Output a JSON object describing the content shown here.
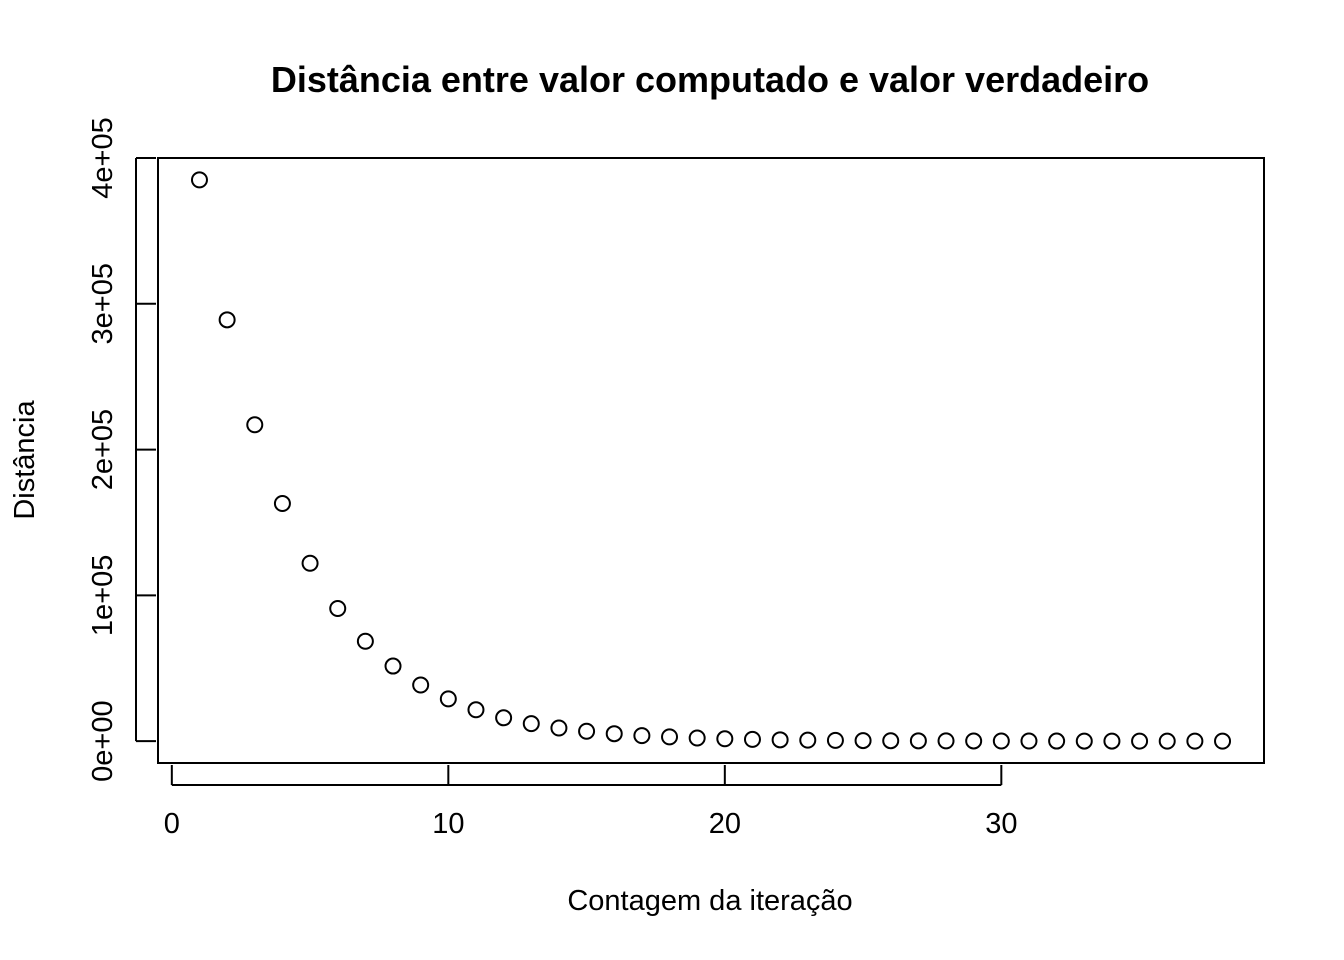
{
  "chart_data": {
    "type": "scatter",
    "title": "Distância entre valor computado e valor verdadeiro",
    "xlabel": "Contagem da iteração",
    "ylabel": "Distância",
    "xlim": [
      -0.5,
      39.5
    ],
    "ylim": [
      -15000,
      400000
    ],
    "x_ticks": [
      0,
      10,
      20,
      30
    ],
    "x_tick_labels": [
      "0",
      "10",
      "20",
      "30"
    ],
    "y_ticks": [
      0,
      100000,
      200000,
      300000,
      400000
    ],
    "y_tick_labels": [
      "0e+00",
      "1e+05",
      "2e+05",
      "3e+05",
      "4e+05"
    ],
    "grid": false,
    "legend": "none",
    "marker": "open-circle",
    "x": [
      1,
      2,
      3,
      4,
      5,
      6,
      7,
      8,
      9,
      10,
      11,
      12,
      13,
      14,
      15,
      16,
      17,
      18,
      19,
      20,
      21,
      22,
      23,
      24,
      25,
      26,
      27,
      28,
      29,
      30,
      31,
      32,
      33,
      34,
      35,
      36,
      37,
      38
    ],
    "y": [
      385000,
      289000,
      217000,
      163000,
      122000,
      91000,
      68500,
      51500,
      38500,
      29000,
      21500,
      16000,
      12000,
      9000,
      6800,
      5100,
      3800,
      2900,
      2150,
      1600,
      1200,
      900,
      680,
      510,
      380,
      290,
      215,
      160,
      120,
      90,
      68,
      51,
      38,
      29,
      21,
      16,
      12,
      9
    ]
  }
}
